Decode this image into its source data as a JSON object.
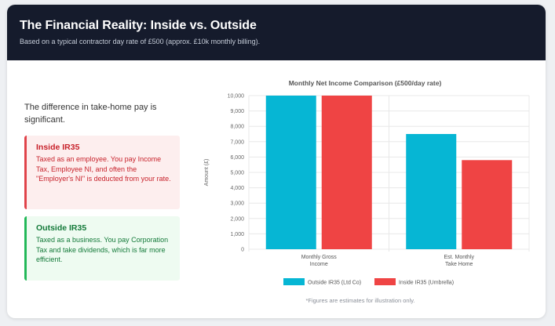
{
  "header": {
    "title": "The Financial Reality: Inside vs. Outside",
    "subtitle": "Based on a typical contractor day rate of £500 (approx. £10k monthly billing)."
  },
  "intro": "The difference in take-home pay is significant.",
  "inside_box": {
    "title": "Inside IR35",
    "description": "Taxed as an employee. You pay Income Tax, Employee NI, and often the \"Employer's NI\" is deducted from your rate."
  },
  "outside_box": {
    "title": "Outside IR35",
    "description": "Taxed as a business. You pay Corporation Tax and take dividends, which is far more efficient."
  },
  "footnote": "*Figures are estimates for illustration only.",
  "colors": {
    "outside": "#06b6d4",
    "inside": "#ef4444"
  },
  "chart_data": {
    "type": "bar",
    "title": "Monthly Net Income Comparison (£500/day rate)",
    "categories": [
      [
        "Monthly Gross",
        "Income"
      ],
      [
        "Est. Monthly",
        "Take Home"
      ]
    ],
    "series": [
      {
        "name": "Outside IR35 (Ltd Co)",
        "values": [
          10000,
          7500
        ]
      },
      {
        "name": "Inside IR35 (Umbrella)",
        "values": [
          10000,
          5800
        ]
      }
    ],
    "xlabel": "",
    "ylabel": "Amount (£)",
    "ylim": [
      0,
      10000
    ],
    "yticks": [
      "0",
      "1,000",
      "2,000",
      "3,000",
      "4,000",
      "5,000",
      "6,000",
      "7,000",
      "8,000",
      "9,000",
      "10,000"
    ],
    "legend_position": "bottom"
  }
}
